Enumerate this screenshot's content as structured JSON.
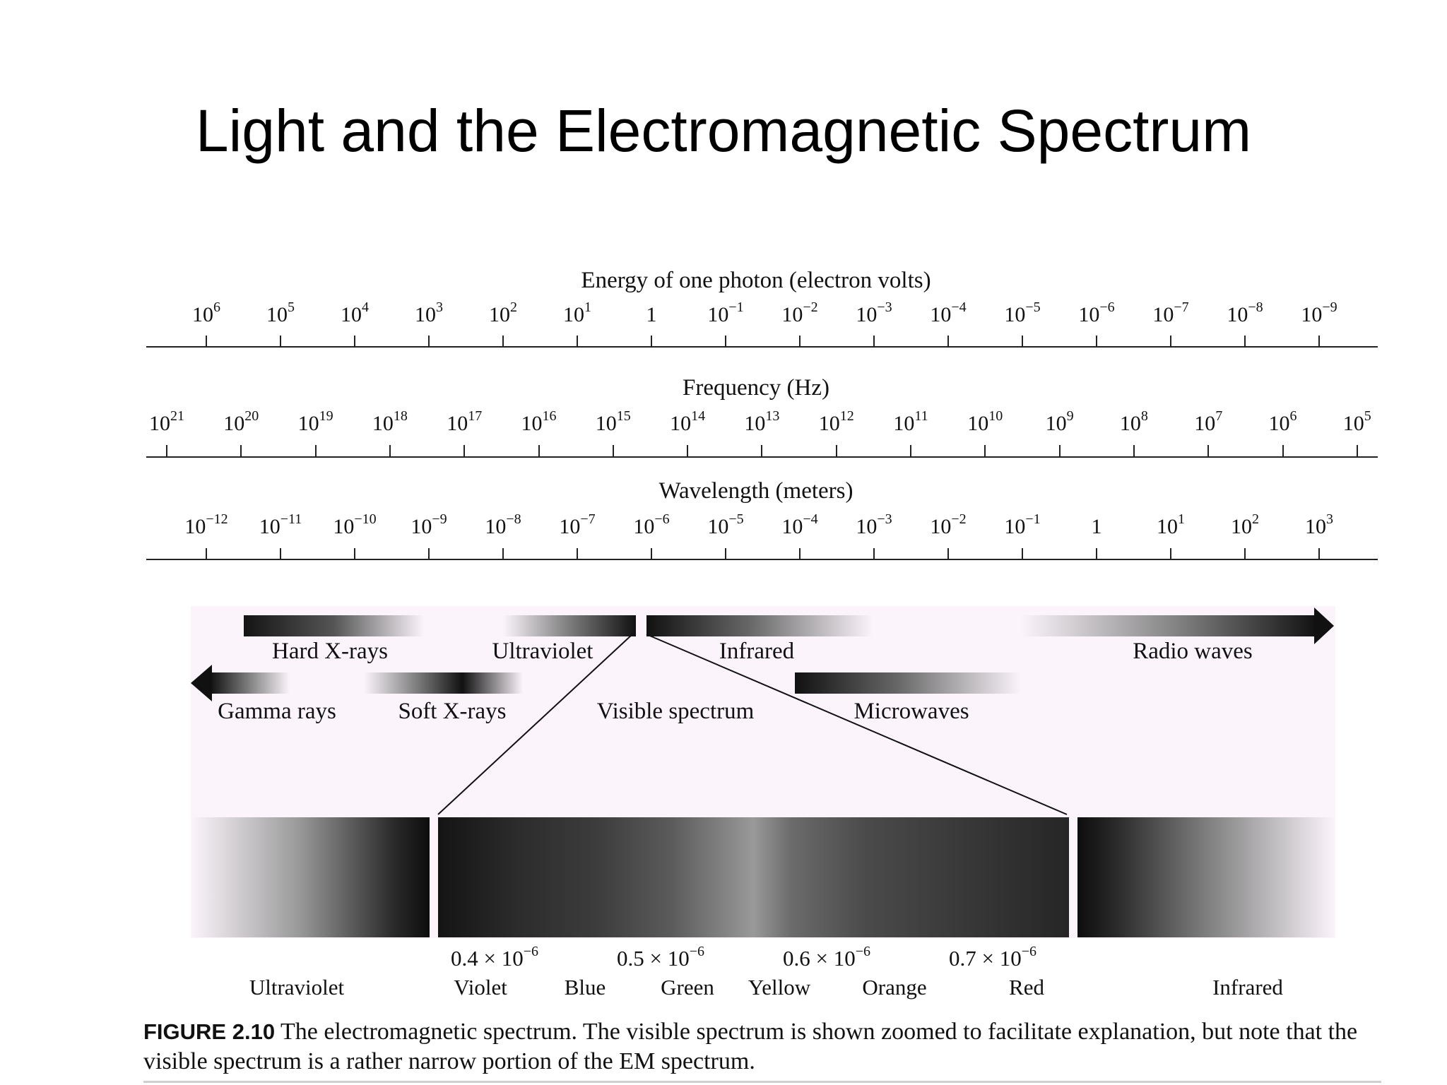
{
  "slide": {
    "title": "Light and the Electromagnetic Spectrum"
  },
  "energy_axis": {
    "title": "Energy of one photon (electron volts)",
    "ticks": [
      {
        "base": "10",
        "exp": "6"
      },
      {
        "base": "10",
        "exp": "5"
      },
      {
        "base": "10",
        "exp": "4"
      },
      {
        "base": "10",
        "exp": "3"
      },
      {
        "base": "10",
        "exp": "2"
      },
      {
        "base": "10",
        "exp": "1"
      },
      {
        "base": "1",
        "exp": ""
      },
      {
        "base": "10",
        "exp": "−1"
      },
      {
        "base": "10",
        "exp": "−2"
      },
      {
        "base": "10",
        "exp": "−3"
      },
      {
        "base": "10",
        "exp": "−4"
      },
      {
        "base": "10",
        "exp": "−5"
      },
      {
        "base": "10",
        "exp": "−6"
      },
      {
        "base": "10",
        "exp": "−7"
      },
      {
        "base": "10",
        "exp": "−8"
      },
      {
        "base": "10",
        "exp": "−9"
      }
    ]
  },
  "frequency_axis": {
    "title": "Frequency (Hz)",
    "ticks": [
      {
        "base": "10",
        "exp": "21"
      },
      {
        "base": "10",
        "exp": "20"
      },
      {
        "base": "10",
        "exp": "19"
      },
      {
        "base": "10",
        "exp": "18"
      },
      {
        "base": "10",
        "exp": "17"
      },
      {
        "base": "10",
        "exp": "16"
      },
      {
        "base": "10",
        "exp": "15"
      },
      {
        "base": "10",
        "exp": "14"
      },
      {
        "base": "10",
        "exp": "13"
      },
      {
        "base": "10",
        "exp": "12"
      },
      {
        "base": "10",
        "exp": "11"
      },
      {
        "base": "10",
        "exp": "10"
      },
      {
        "base": "10",
        "exp": "9"
      },
      {
        "base": "10",
        "exp": "8"
      },
      {
        "base": "10",
        "exp": "7"
      },
      {
        "base": "10",
        "exp": "6"
      },
      {
        "base": "10",
        "exp": "5"
      }
    ]
  },
  "wavelength_axis": {
    "title": "Wavelength (meters)",
    "ticks": [
      {
        "base": "10",
        "exp": "−12"
      },
      {
        "base": "10",
        "exp": "−11"
      },
      {
        "base": "10",
        "exp": "−10"
      },
      {
        "base": "10",
        "exp": "−9"
      },
      {
        "base": "10",
        "exp": "−8"
      },
      {
        "base": "10",
        "exp": "−7"
      },
      {
        "base": "10",
        "exp": "−6"
      },
      {
        "base": "10",
        "exp": "−5"
      },
      {
        "base": "10",
        "exp": "−4"
      },
      {
        "base": "10",
        "exp": "−3"
      },
      {
        "base": "10",
        "exp": "−2"
      },
      {
        "base": "10",
        "exp": "−1"
      },
      {
        "base": "1",
        "exp": ""
      },
      {
        "base": "10",
        "exp": "1"
      },
      {
        "base": "10",
        "exp": "2"
      },
      {
        "base": "10",
        "exp": "3"
      }
    ]
  },
  "bands": {
    "hard_xrays": "Hard X-rays",
    "ultraviolet": "Ultraviolet",
    "infrared": "Infrared",
    "radio_waves": "Radio waves",
    "gamma_rays": "Gamma rays",
    "soft_xrays": "Soft X-rays",
    "visible_spectrum": "Visible spectrum",
    "microwaves": "Microwaves"
  },
  "visible_detail": {
    "wavelength_marks": [
      {
        "value": "0.4 × 10",
        "exp": "−6"
      },
      {
        "value": "0.5 × 10",
        "exp": "−6"
      },
      {
        "value": "0.6 × 10",
        "exp": "−6"
      },
      {
        "value": "0.7 × 10",
        "exp": "−6"
      }
    ],
    "ultraviolet": "Ultraviolet",
    "colors": [
      "Violet",
      "Blue",
      "Green",
      "Yellow",
      "Orange",
      "Red"
    ],
    "infrared": "Infrared"
  },
  "caption": {
    "label": "FIGURE 2.10",
    "text": "The electromagnetic spectrum. The visible spectrum is shown zoomed to facilitate explanation, but note that the visible spectrum is a rather narrow portion of the EM spectrum."
  }
}
